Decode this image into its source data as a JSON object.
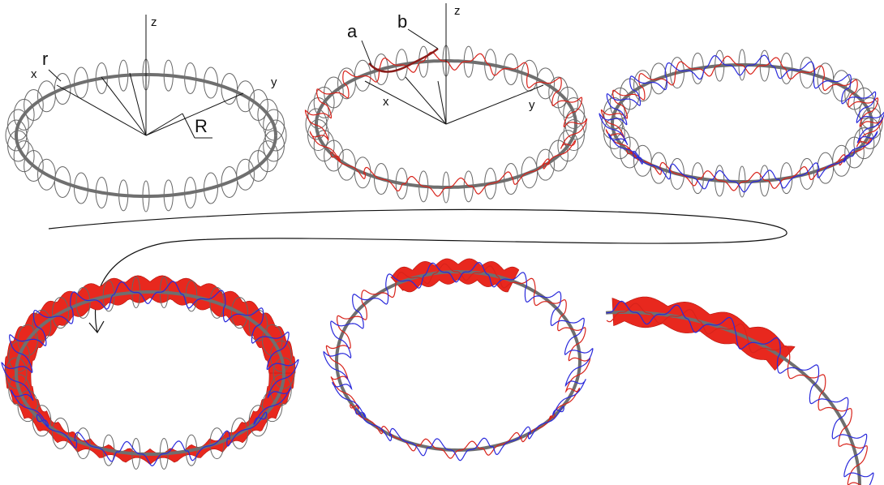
{
  "panel_1": {
    "z": "z",
    "r": "r",
    "x": "x",
    "y": "y",
    "R": "R"
  },
  "panel_2": {
    "a": "a",
    "b": "b",
    "z": "z",
    "x": "x",
    "y": "y"
  }
}
